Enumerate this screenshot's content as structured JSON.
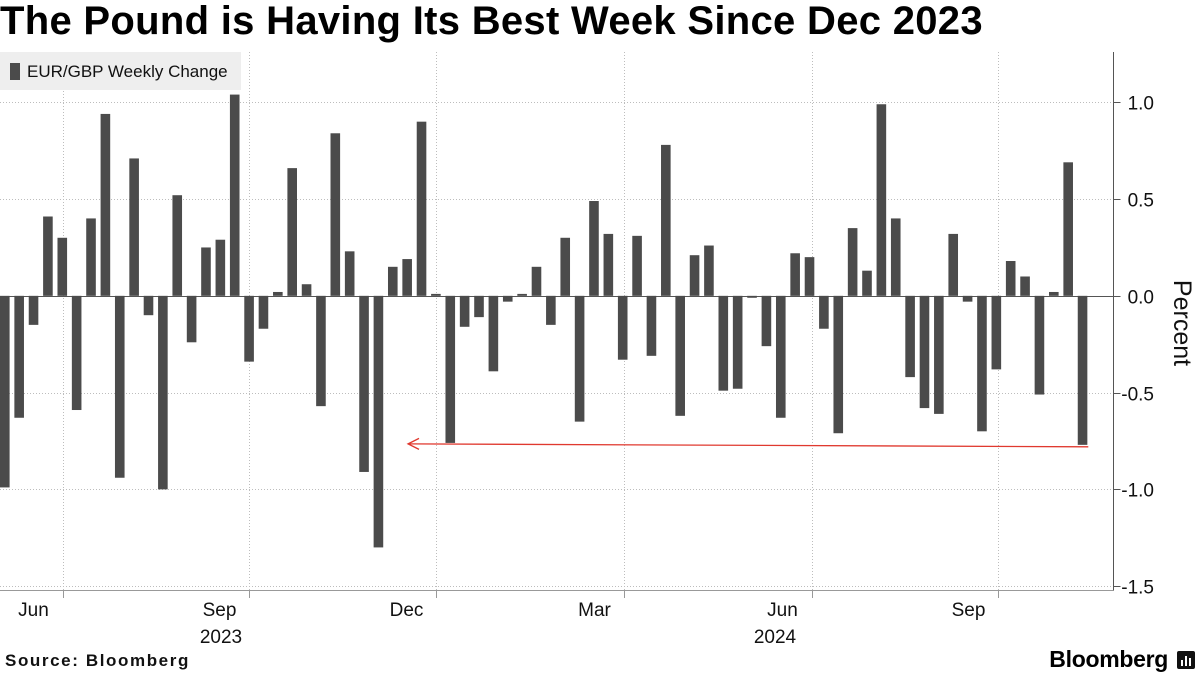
{
  "chart_data": {
    "type": "bar",
    "title": "The Pound is Having Its Best Week Since Dec 2023",
    "series": [
      {
        "name": "EUR/GBP Weekly Change",
        "values": [
          -0.99,
          -0.63,
          -0.15,
          0.41,
          0.3,
          -0.59,
          0.4,
          0.94,
          -0.94,
          0.71,
          -0.1,
          -1.0,
          0.52,
          -0.24,
          0.25,
          0.29,
          1.04,
          -0.34,
          -0.17,
          0.02,
          0.66,
          0.06,
          -0.57,
          0.84,
          0.23,
          -0.91,
          -1.3,
          0.15,
          0.19,
          0.9,
          0.01,
          -0.76,
          -0.16,
          -0.11,
          -0.39,
          -0.03,
          0.01,
          0.15,
          -0.15,
          0.3,
          -0.65,
          0.49,
          0.32,
          -0.33,
          0.31,
          -0.31,
          0.78,
          -0.62,
          0.21,
          0.26,
          -0.49,
          -0.48,
          -0.01,
          -0.26,
          -0.63,
          0.22,
          0.2,
          -0.17,
          -0.71,
          0.35,
          0.13,
          0.99,
          0.4,
          -0.42,
          -0.58,
          -0.61,
          0.32,
          -0.03,
          -0.7,
          -0.38,
          0.18,
          0.1,
          -0.51,
          0.02,
          0.69,
          -0.77
        ]
      }
    ],
    "legend_position": "top-left",
    "ylabel": "Percent",
    "ylim": [
      -1.52,
      1.26
    ],
    "yticks": [
      {
        "value": 1.0,
        "label": "1.0"
      },
      {
        "value": 0.5,
        "label": "0.5"
      },
      {
        "value": 0.0,
        "label": "0.0"
      },
      {
        "value": -0.5,
        "label": "-0.5"
      },
      {
        "value": -1.0,
        "label": "-1.0"
      },
      {
        "value": -1.5,
        "label": "-1.5"
      }
    ],
    "xticks": [
      {
        "label": "Jun",
        "week": 4.06
      },
      {
        "label": "Sep",
        "week": 17.0
      },
      {
        "label": "Dec",
        "week": 30.0
      },
      {
        "label": "Mar",
        "week": 43.1
      },
      {
        "label": "Jun",
        "week": 56.2
      },
      {
        "label": "Sep",
        "week": 69.1
      }
    ],
    "xyears": [
      "2023",
      "2024"
    ],
    "grid": true,
    "annotation_arrow": {
      "from_week": 75.4,
      "from_value": -0.78,
      "to_week": 28.06,
      "to_value": -0.765
    }
  },
  "footer": {
    "source": "Source: Bloomberg",
    "logo_text": "Bloomberg",
    "logo_icon": "bloomberg-logo-icon"
  },
  "colors": {
    "bar": "#4b4b4b",
    "arrow": "#e0392f",
    "legend_background": "#eeeeee",
    "grid": "#bdbdbd",
    "zero_line": "#555555",
    "axis": "#555555",
    "axis_light": "#999999"
  }
}
